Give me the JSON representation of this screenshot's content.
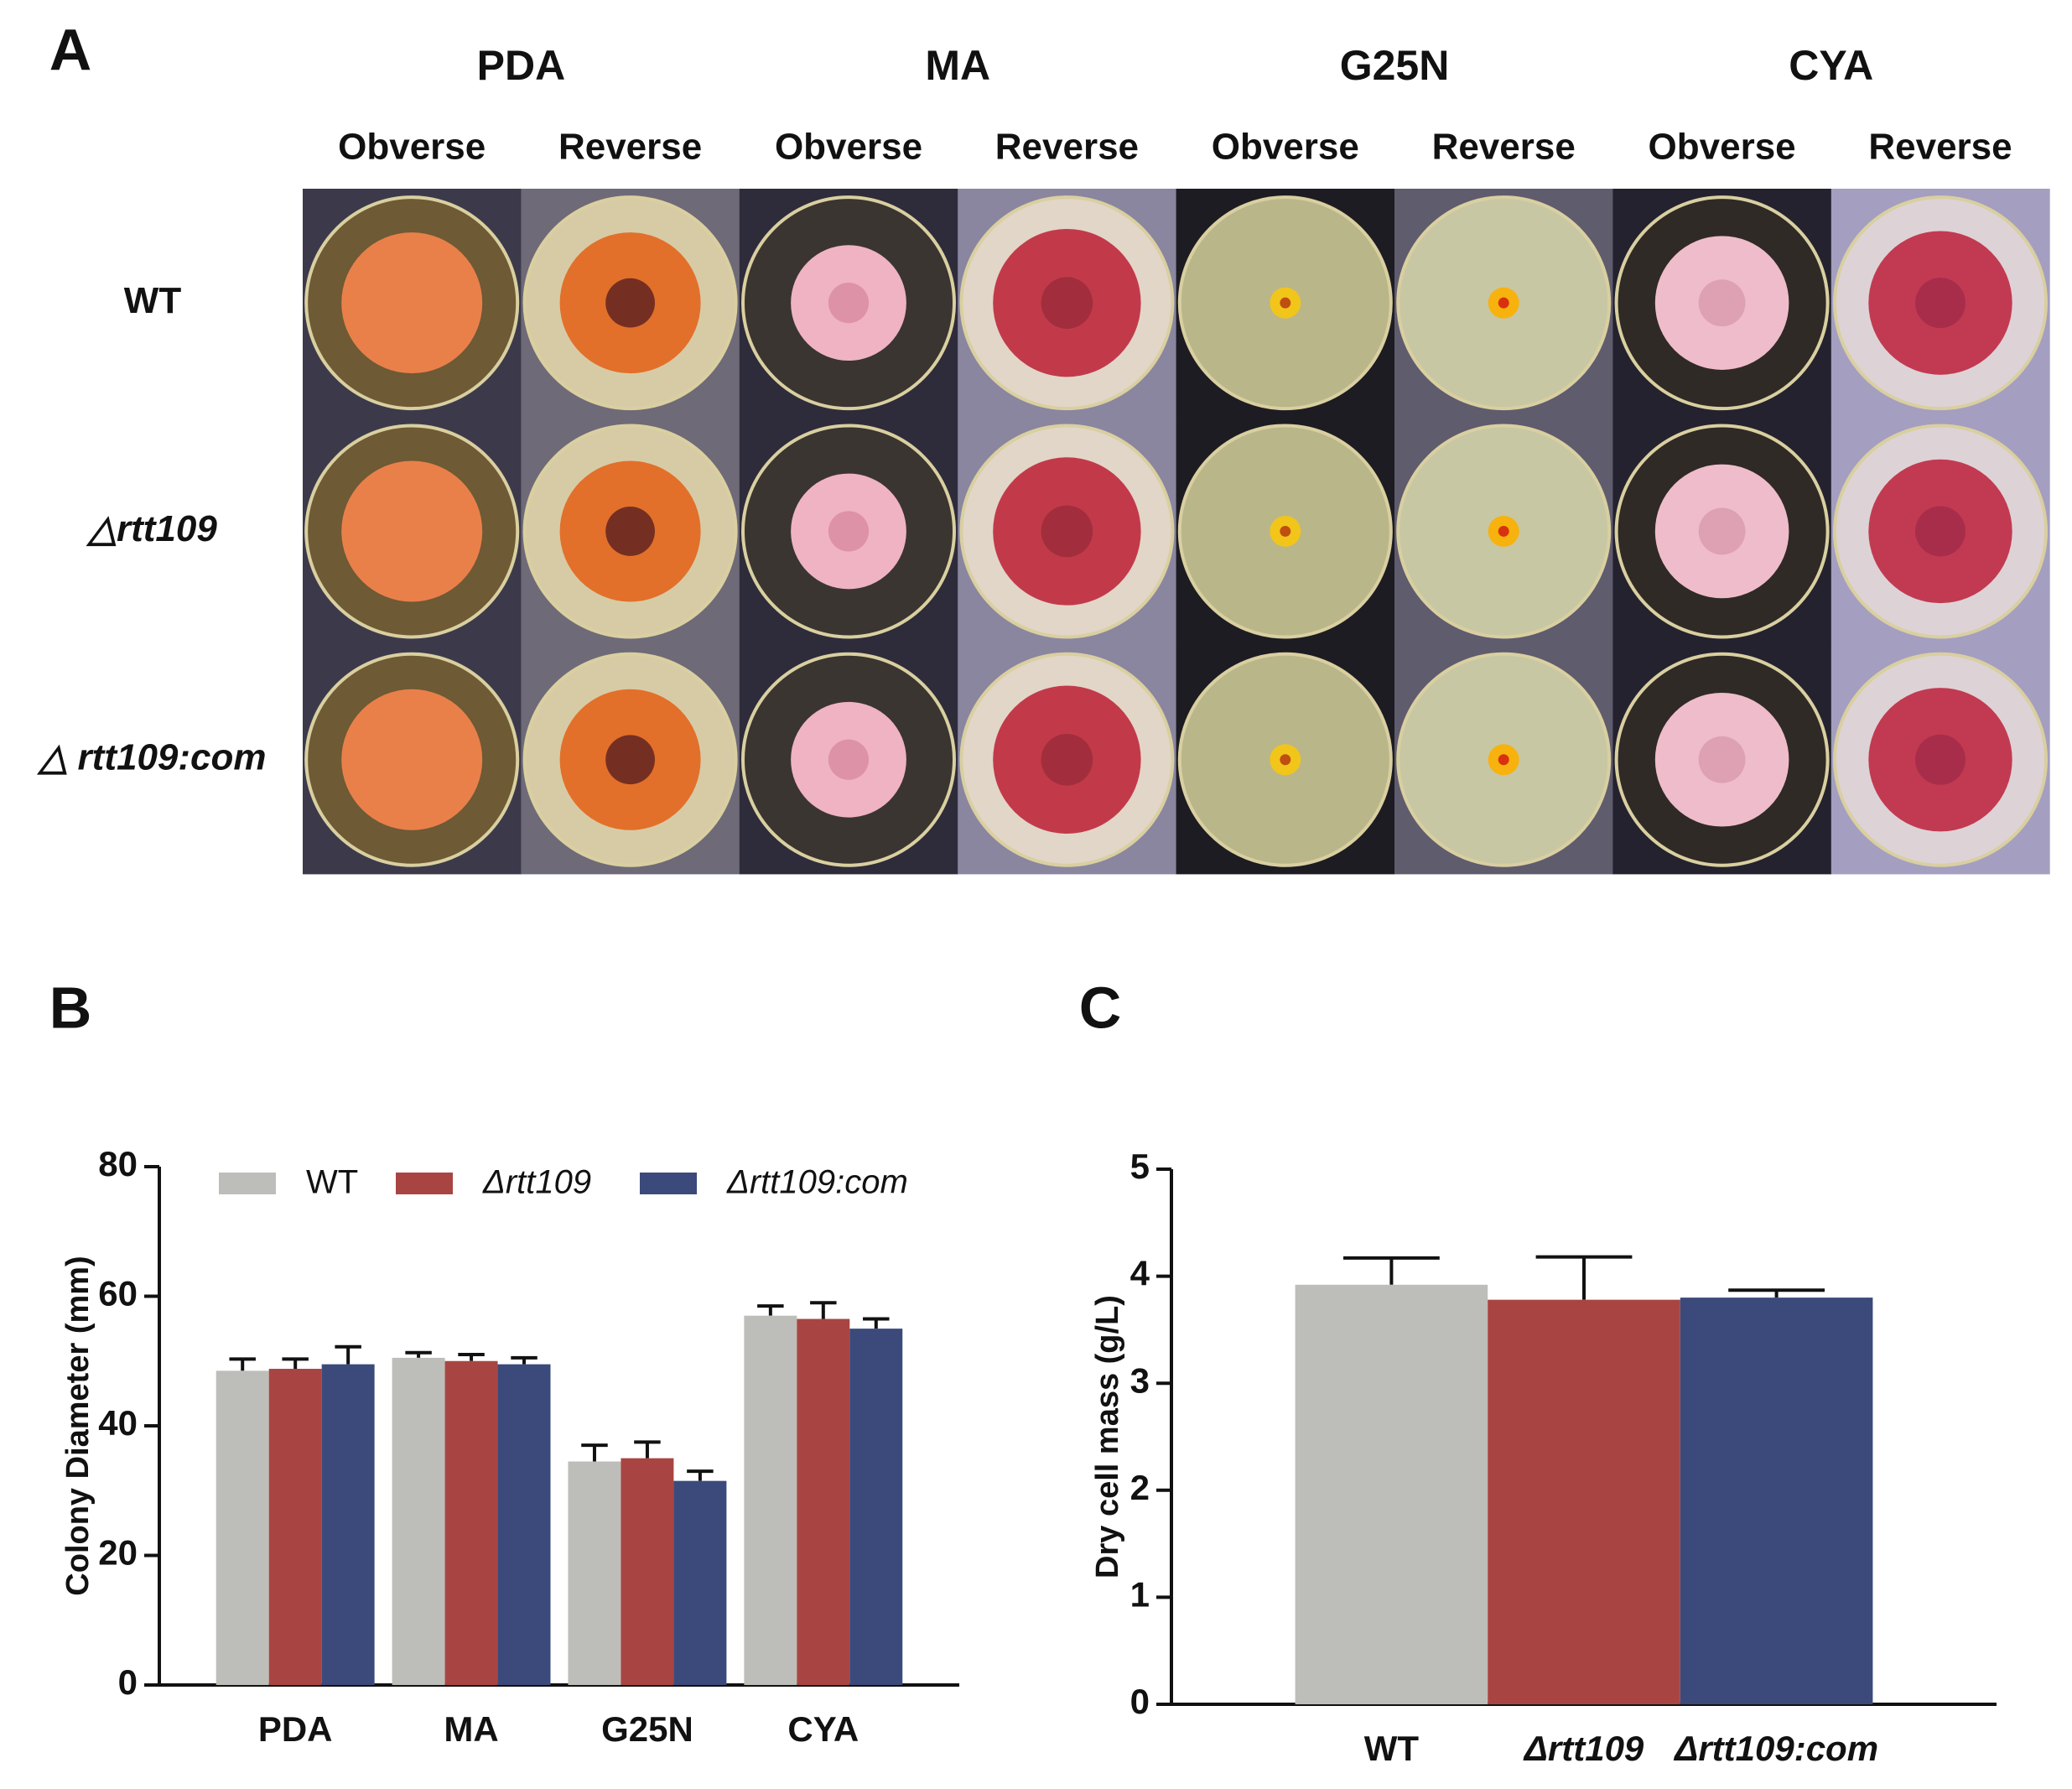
{
  "panel_a": {
    "letter": "A",
    "media": [
      "PDA",
      "MA",
      "G25N",
      "CYA"
    ],
    "views": [
      "Obverse",
      "Reverse",
      "Obverse",
      "Reverse",
      "Obverse",
      "Reverse",
      "Obverse",
      "Reverse"
    ],
    "strains": [
      "WT",
      "△rtt109",
      "△ rtt109:com"
    ]
  },
  "chart_data": [
    {
      "type": "bar",
      "letter": "B",
      "y_label": "Colony Diameter (mm)",
      "categories": [
        "PDA",
        "MA",
        "G25N",
        "CYA"
      ],
      "series": [
        {
          "name": "WT",
          "color": "#bdbeb9",
          "values": [
            48.5,
            50.5,
            34.5,
            57
          ],
          "errors": [
            1.8,
            0.8,
            2.5,
            1.5
          ]
        },
        {
          "name": "Δrtt109",
          "color": "#a84542",
          "values": [
            48.8,
            50,
            35,
            56.5
          ],
          "errors": [
            1.5,
            1,
            2.5,
            2.5
          ]
        },
        {
          "name": "Δrtt109:com",
          "color": "#3b4a7b",
          "values": [
            49.5,
            49.5,
            31.5,
            55
          ],
          "errors": [
            2.7,
            1,
            1.5,
            1.5
          ]
        }
      ],
      "ylim": [
        0,
        80
      ],
      "yticks": [
        0,
        20,
        40,
        60,
        80
      ],
      "legend": "top"
    },
    {
      "type": "bar",
      "letter": "C",
      "y_label": "Dry cell mass (g/L)",
      "categories": [
        "WT",
        "Δrtt109",
        "Δrtt109:com"
      ],
      "values": [
        3.92,
        3.78,
        3.8
      ],
      "errors": [
        0.25,
        0.4,
        0.07
      ],
      "colors": [
        "#bdbeb9",
        "#a84542",
        "#3b4a7b"
      ],
      "ylim": [
        0,
        5
      ],
      "yticks": [
        0,
        1,
        2,
        3,
        4,
        5
      ]
    }
  ]
}
